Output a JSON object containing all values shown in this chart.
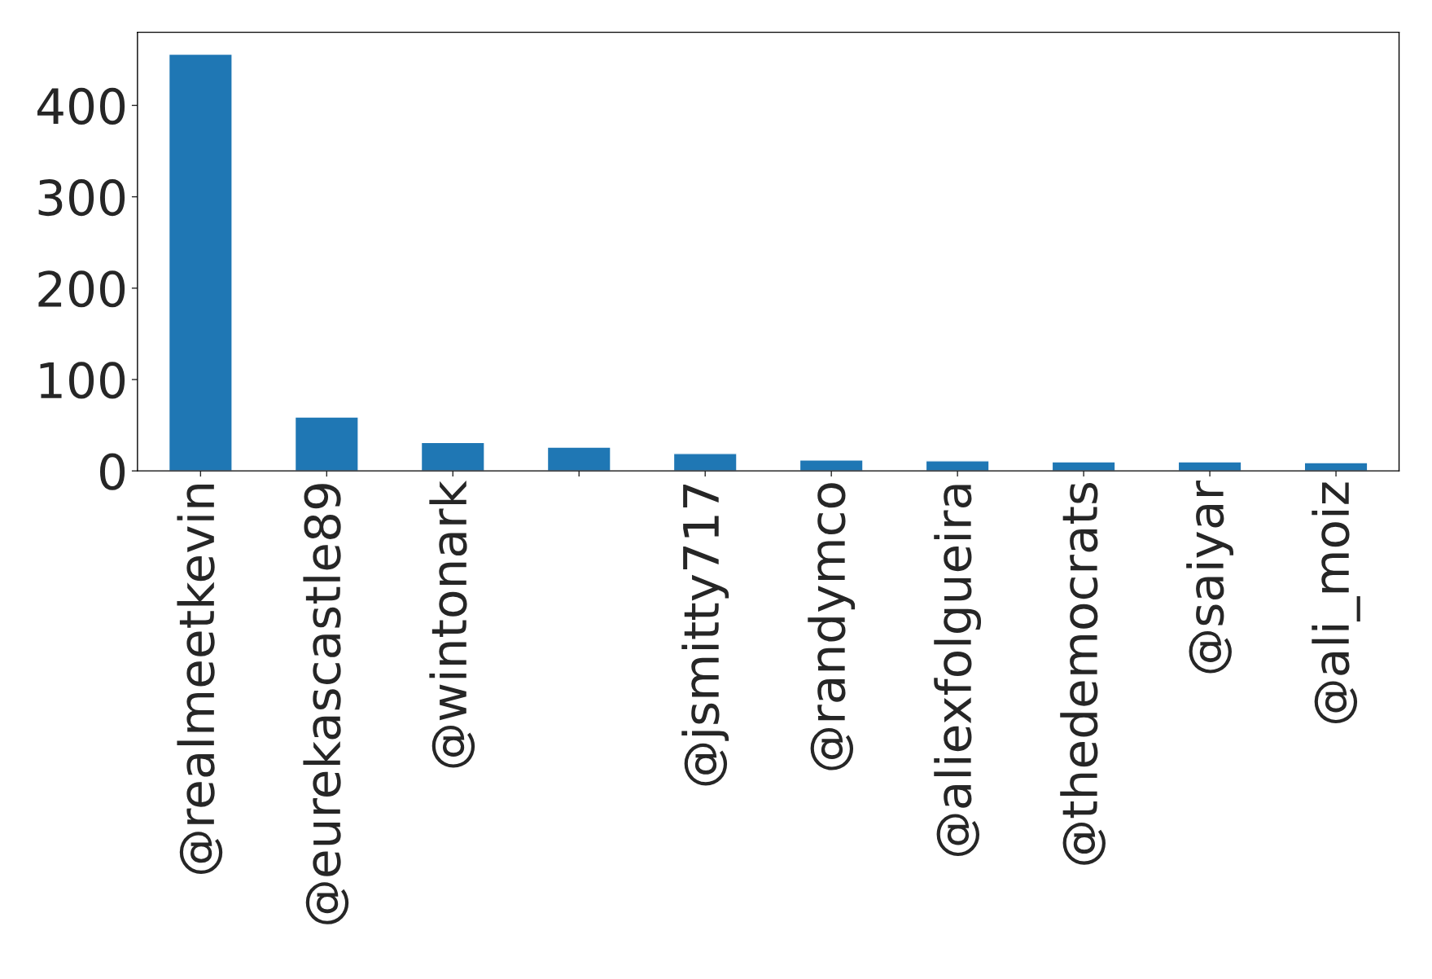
{
  "chart_data": {
    "type": "bar",
    "categories": [
      "@realmeetkevin",
      "@eurekascastle89",
      "@wintonark",
      null,
      "@jsmitty717",
      "@randymco",
      "@aliexfolgueira",
      "@thedemocrats",
      "@saiyar",
      "@ali_moiz"
    ],
    "values": [
      456,
      59,
      31,
      26,
      19,
      12,
      11,
      10,
      10,
      9
    ],
    "color": "#1f77b4",
    "ylim": [
      0,
      480
    ],
    "yticks": [
      0,
      100,
      200,
      300,
      400
    ],
    "grid": false,
    "legend": false
  }
}
